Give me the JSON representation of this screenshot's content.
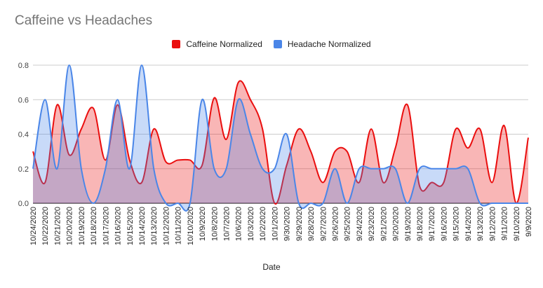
{
  "chart_data": {
    "type": "area",
    "title": "Caffeine vs Headaches",
    "xlabel": "Date",
    "ylabel": "",
    "ylim": [
      0,
      0.8
    ],
    "yticks": [
      "0.0",
      "0.2",
      "0.4",
      "0.6",
      "0.8"
    ],
    "grid": true,
    "legend": "top",
    "categories": [
      "10/24/2020",
      "10/22/2020",
      "10/21/2020",
      "10/20/2020",
      "10/19/2020",
      "10/18/2020",
      "10/17/2020",
      "10/16/2020",
      "10/15/2020",
      "10/14/2020",
      "10/13/2020",
      "10/12/2020",
      "10/11/2020",
      "10/10/2020",
      "10/9/2020",
      "10/8/2020",
      "10/7/2020",
      "10/6/2020",
      "10/3/2020",
      "10/2/2020",
      "10/1/2020",
      "9/30/2020",
      "9/29/2020",
      "9/28/2020",
      "9/27/2020",
      "9/26/2020",
      "9/25/2020",
      "9/24/2020",
      "9/23/2020",
      "9/21/2020",
      "9/20/2020",
      "9/19/2020",
      "9/18/2020",
      "9/17/2020",
      "9/16/2020",
      "9/15/2020",
      "9/14/2020",
      "9/13/2020",
      "9/12/2020",
      "9/11/2020",
      "9/10/2020",
      "9/9/2020"
    ],
    "series": [
      {
        "name": "Caffeine Normalized",
        "color": "#ea0e0e",
        "values": [
          0.3,
          0.12,
          0.57,
          0.28,
          0.43,
          0.55,
          0.25,
          0.57,
          0.25,
          0.12,
          0.43,
          0.24,
          0.25,
          0.25,
          0.22,
          0.61,
          0.37,
          0.7,
          0.6,
          0.43,
          0.0,
          0.22,
          0.43,
          0.3,
          0.12,
          0.3,
          0.3,
          0.12,
          0.43,
          0.12,
          0.32,
          0.57,
          0.1,
          0.12,
          0.12,
          0.43,
          0.32,
          0.43,
          0.12,
          0.45,
          0.0,
          0.38
        ]
      },
      {
        "name": "Headache Normalized",
        "color": "#4a86e8",
        "values": [
          0.2,
          0.6,
          0.2,
          0.8,
          0.2,
          0.0,
          0.2,
          0.6,
          0.2,
          0.8,
          0.2,
          0.0,
          0.0,
          0.0,
          0.6,
          0.2,
          0.2,
          0.6,
          0.4,
          0.2,
          0.2,
          0.4,
          0.0,
          0.0,
          0.0,
          0.2,
          0.0,
          0.2,
          0.2,
          0.2,
          0.2,
          0.0,
          0.2,
          0.2,
          0.2,
          0.2,
          0.2,
          0.0,
          0.0,
          0.0,
          0.0,
          0.0
        ]
      }
    ]
  }
}
